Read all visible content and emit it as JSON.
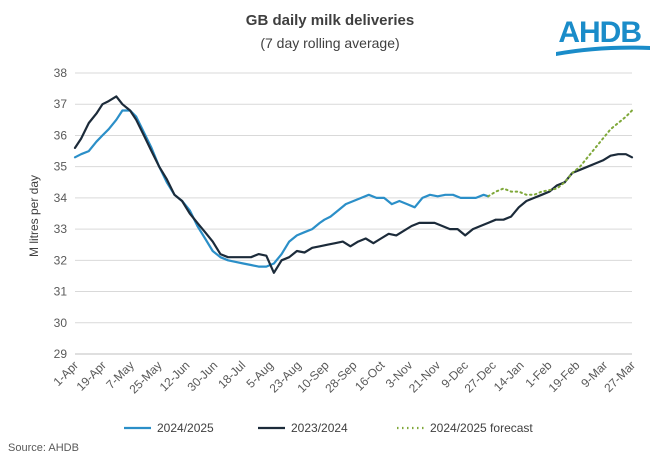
{
  "logo_text": "AHDB",
  "source": "Source: AHDB",
  "chart_data": {
    "type": "line",
    "title": "GB daily milk deliveries",
    "subtitle": "(7 day rolling average)",
    "xlabel": "",
    "ylabel": "M litres per day",
    "ylim": [
      29,
      38
    ],
    "yticks": [
      29,
      30,
      31,
      32,
      33,
      34,
      35,
      36,
      37,
      38
    ],
    "xticks": [
      "1-Apr",
      "19-Apr",
      "7-May",
      "25-May",
      "12-Jun",
      "30-Jun",
      "18-Jul",
      "5-Aug",
      "23-Aug",
      "10-Sep",
      "28-Sep",
      "16-Oct",
      "3-Nov",
      "21-Nov",
      "9-Dec",
      "27-Dec",
      "14-Jan",
      "1-Feb",
      "19-Feb",
      "9-Mar",
      "27-Mar"
    ],
    "x_unit": "days since 1-Apr",
    "grid": "horizontal",
    "legend_position": "bottom",
    "series": [
      {
        "name": "2024/2025",
        "color": "#2b8fc8",
        "style": "solid",
        "x": [
          0,
          4,
          9,
          14,
          18,
          22,
          27,
          31,
          36,
          40,
          45,
          50,
          55,
          60,
          65,
          70,
          75,
          80,
          85,
          90,
          95,
          100,
          105,
          110,
          115,
          120,
          125,
          130,
          135,
          140,
          145,
          150,
          155,
          160,
          163,
          167,
          172,
          177,
          182,
          187,
          192,
          197,
          202,
          207,
          212,
          217,
          222,
          227,
          232,
          237,
          242,
          247,
          252,
          257,
          262,
          267,
          270
        ],
        "values": [
          35.3,
          35.4,
          35.5,
          35.8,
          36.0,
          36.2,
          36.5,
          36.8,
          36.8,
          36.6,
          36.1,
          35.6,
          35.0,
          34.5,
          34.1,
          33.9,
          33.6,
          33.1,
          32.7,
          32.3,
          32.1,
          32.0,
          31.95,
          31.9,
          31.85,
          31.8,
          31.8,
          31.9,
          32.2,
          32.6,
          32.8,
          32.9,
          33.0,
          33.2,
          33.3,
          33.4,
          33.6,
          33.8,
          33.9,
          34.0,
          34.1,
          34.0,
          34.0,
          33.8,
          33.9,
          33.8,
          33.7,
          34.0,
          34.1,
          34.05,
          34.1,
          34.1,
          34.0,
          34.0,
          34.0,
          34.1,
          34.05
        ]
      },
      {
        "name": "2023/2024",
        "color": "#1c2b3a",
        "style": "solid",
        "x": [
          0,
          4,
          9,
          14,
          18,
          22,
          27,
          31,
          36,
          40,
          45,
          50,
          55,
          60,
          65,
          70,
          75,
          80,
          85,
          90,
          95,
          100,
          105,
          110,
          115,
          120,
          125,
          130,
          135,
          140,
          145,
          150,
          155,
          160,
          165,
          170,
          175,
          180,
          185,
          190,
          195,
          200,
          205,
          210,
          215,
          220,
          225,
          230,
          235,
          240,
          245,
          250,
          255,
          260,
          265,
          270,
          275,
          280,
          285,
          290,
          295,
          300,
          305,
          310,
          315,
          320,
          325,
          330,
          335,
          340,
          345,
          350,
          355,
          360,
          364
        ],
        "values": [
          35.6,
          35.9,
          36.4,
          36.7,
          37.0,
          37.1,
          37.25,
          37.0,
          36.8,
          36.5,
          36.0,
          35.5,
          35.0,
          34.6,
          34.1,
          33.9,
          33.5,
          33.2,
          32.9,
          32.6,
          32.2,
          32.1,
          32.1,
          32.1,
          32.1,
          32.2,
          32.15,
          31.6,
          32.0,
          32.1,
          32.3,
          32.25,
          32.4,
          32.45,
          32.5,
          32.55,
          32.6,
          32.45,
          32.6,
          32.7,
          32.55,
          32.7,
          32.85,
          32.8,
          32.95,
          33.1,
          33.2,
          33.2,
          33.2,
          33.1,
          33.0,
          33.0,
          32.8,
          33.0,
          33.1,
          33.2,
          33.3,
          33.3,
          33.4,
          33.7,
          33.9,
          34.0,
          34.1,
          34.2,
          34.4,
          34.5,
          34.8,
          34.9,
          35.0,
          35.1,
          35.2,
          35.35,
          35.4,
          35.4,
          35.3
        ]
      },
      {
        "name": "2024/2025 forecast",
        "color": "#7fa83a",
        "style": "dotted",
        "x": [
          270,
          275,
          280,
          285,
          290,
          295,
          300,
          305,
          310,
          315,
          320,
          325,
          330,
          335,
          340,
          345,
          350,
          355,
          360,
          364
        ],
        "values": [
          34.05,
          34.2,
          34.3,
          34.2,
          34.2,
          34.1,
          34.1,
          34.2,
          34.25,
          34.3,
          34.5,
          34.8,
          35.0,
          35.3,
          35.6,
          35.9,
          36.2,
          36.4,
          36.6,
          36.8
        ]
      }
    ]
  }
}
